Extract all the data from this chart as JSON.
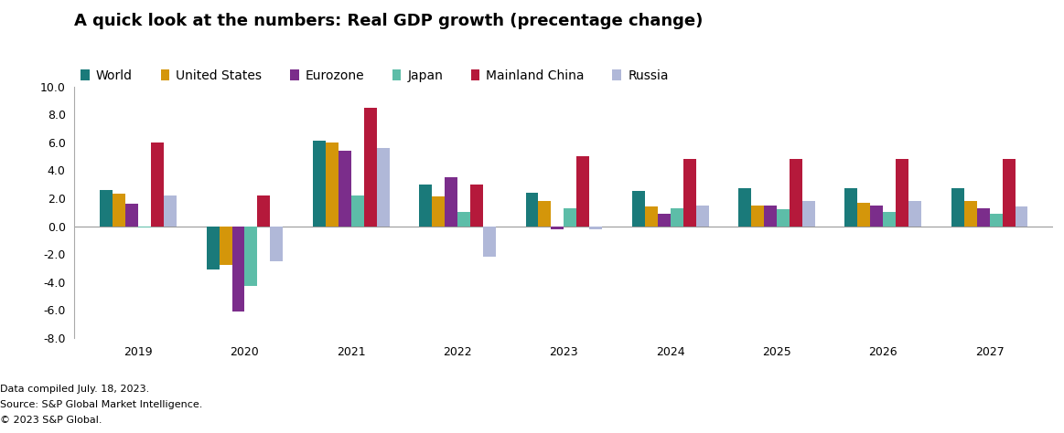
{
  "title": "A quick look at the numbers: Real GDP growth (precentage change)",
  "years": [
    2019,
    2020,
    2021,
    2022,
    2023,
    2024,
    2025,
    2026,
    2027
  ],
  "series": {
    "World": [
      2.6,
      -3.1,
      6.1,
      3.0,
      2.4,
      2.5,
      2.7,
      2.7,
      2.7
    ],
    "United States": [
      2.3,
      -2.8,
      6.0,
      2.1,
      1.8,
      1.4,
      1.5,
      1.7,
      1.8
    ],
    "Eurozone": [
      1.6,
      -6.1,
      5.4,
      3.5,
      -0.2,
      0.9,
      1.5,
      1.5,
      1.3
    ],
    "Japan": [
      -0.1,
      -4.3,
      2.2,
      1.0,
      1.3,
      1.3,
      1.2,
      1.0,
      0.9
    ],
    "Mainland China": [
      6.0,
      2.2,
      8.5,
      3.0,
      5.0,
      4.8,
      4.8,
      4.8,
      4.8
    ],
    "Russia": [
      2.2,
      -2.5,
      5.6,
      -2.2,
      -0.2,
      1.5,
      1.8,
      1.8,
      1.4
    ]
  },
  "colors": {
    "World": "#1a7a7a",
    "United States": "#d4960a",
    "Eurozone": "#7b2d8b",
    "Japan": "#5dbda8",
    "Mainland China": "#b5193b",
    "Russia": "#b0b8d8"
  },
  "ylim": [
    -8.0,
    10.0
  ],
  "yticks": [
    -8.0,
    -6.0,
    -4.0,
    -2.0,
    0.0,
    2.0,
    4.0,
    6.0,
    8.0,
    10.0
  ],
  "footnote1": "Data compiled July. 18, 2023.",
  "footnote2": "Source: S&P Global Market Intelligence.",
  "footnote3": "© 2023 S&P Global.",
  "title_fontsize": 13,
  "legend_fontsize": 10,
  "axis_fontsize": 9,
  "footnote_fontsize": 8,
  "bar_width": 0.12
}
